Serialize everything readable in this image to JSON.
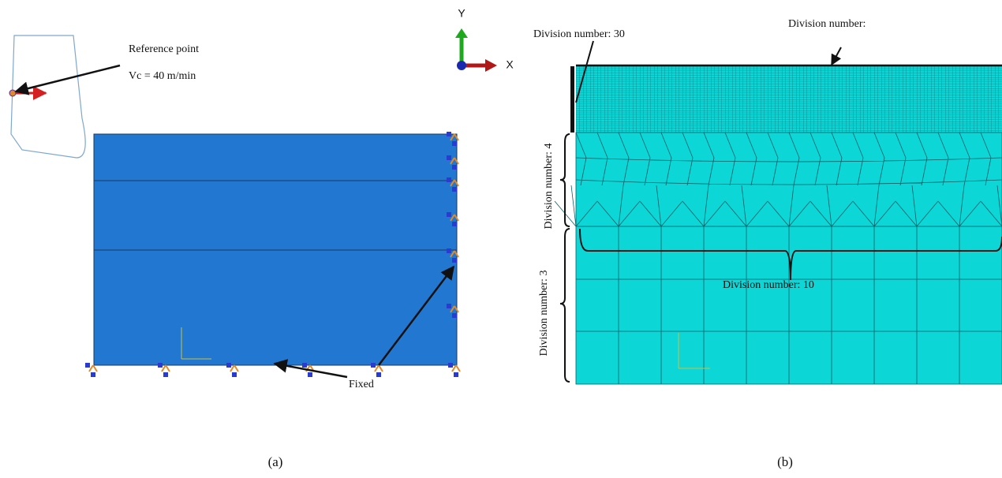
{
  "panel_a": {
    "reference_label": "Reference point",
    "velocity_label": "Vc = 40 m/min",
    "fixed_label": "Fixed",
    "axis_y": "Y",
    "axis_x": "X",
    "caption": "(a)"
  },
  "panel_b": {
    "top_left_label": "Division number: 30",
    "top_label": "Division number:",
    "left_upper_label": "Division number: 4",
    "left_lower_label": "Division number: 3",
    "middle_label": "Division number: 10",
    "caption": "(b)"
  }
}
